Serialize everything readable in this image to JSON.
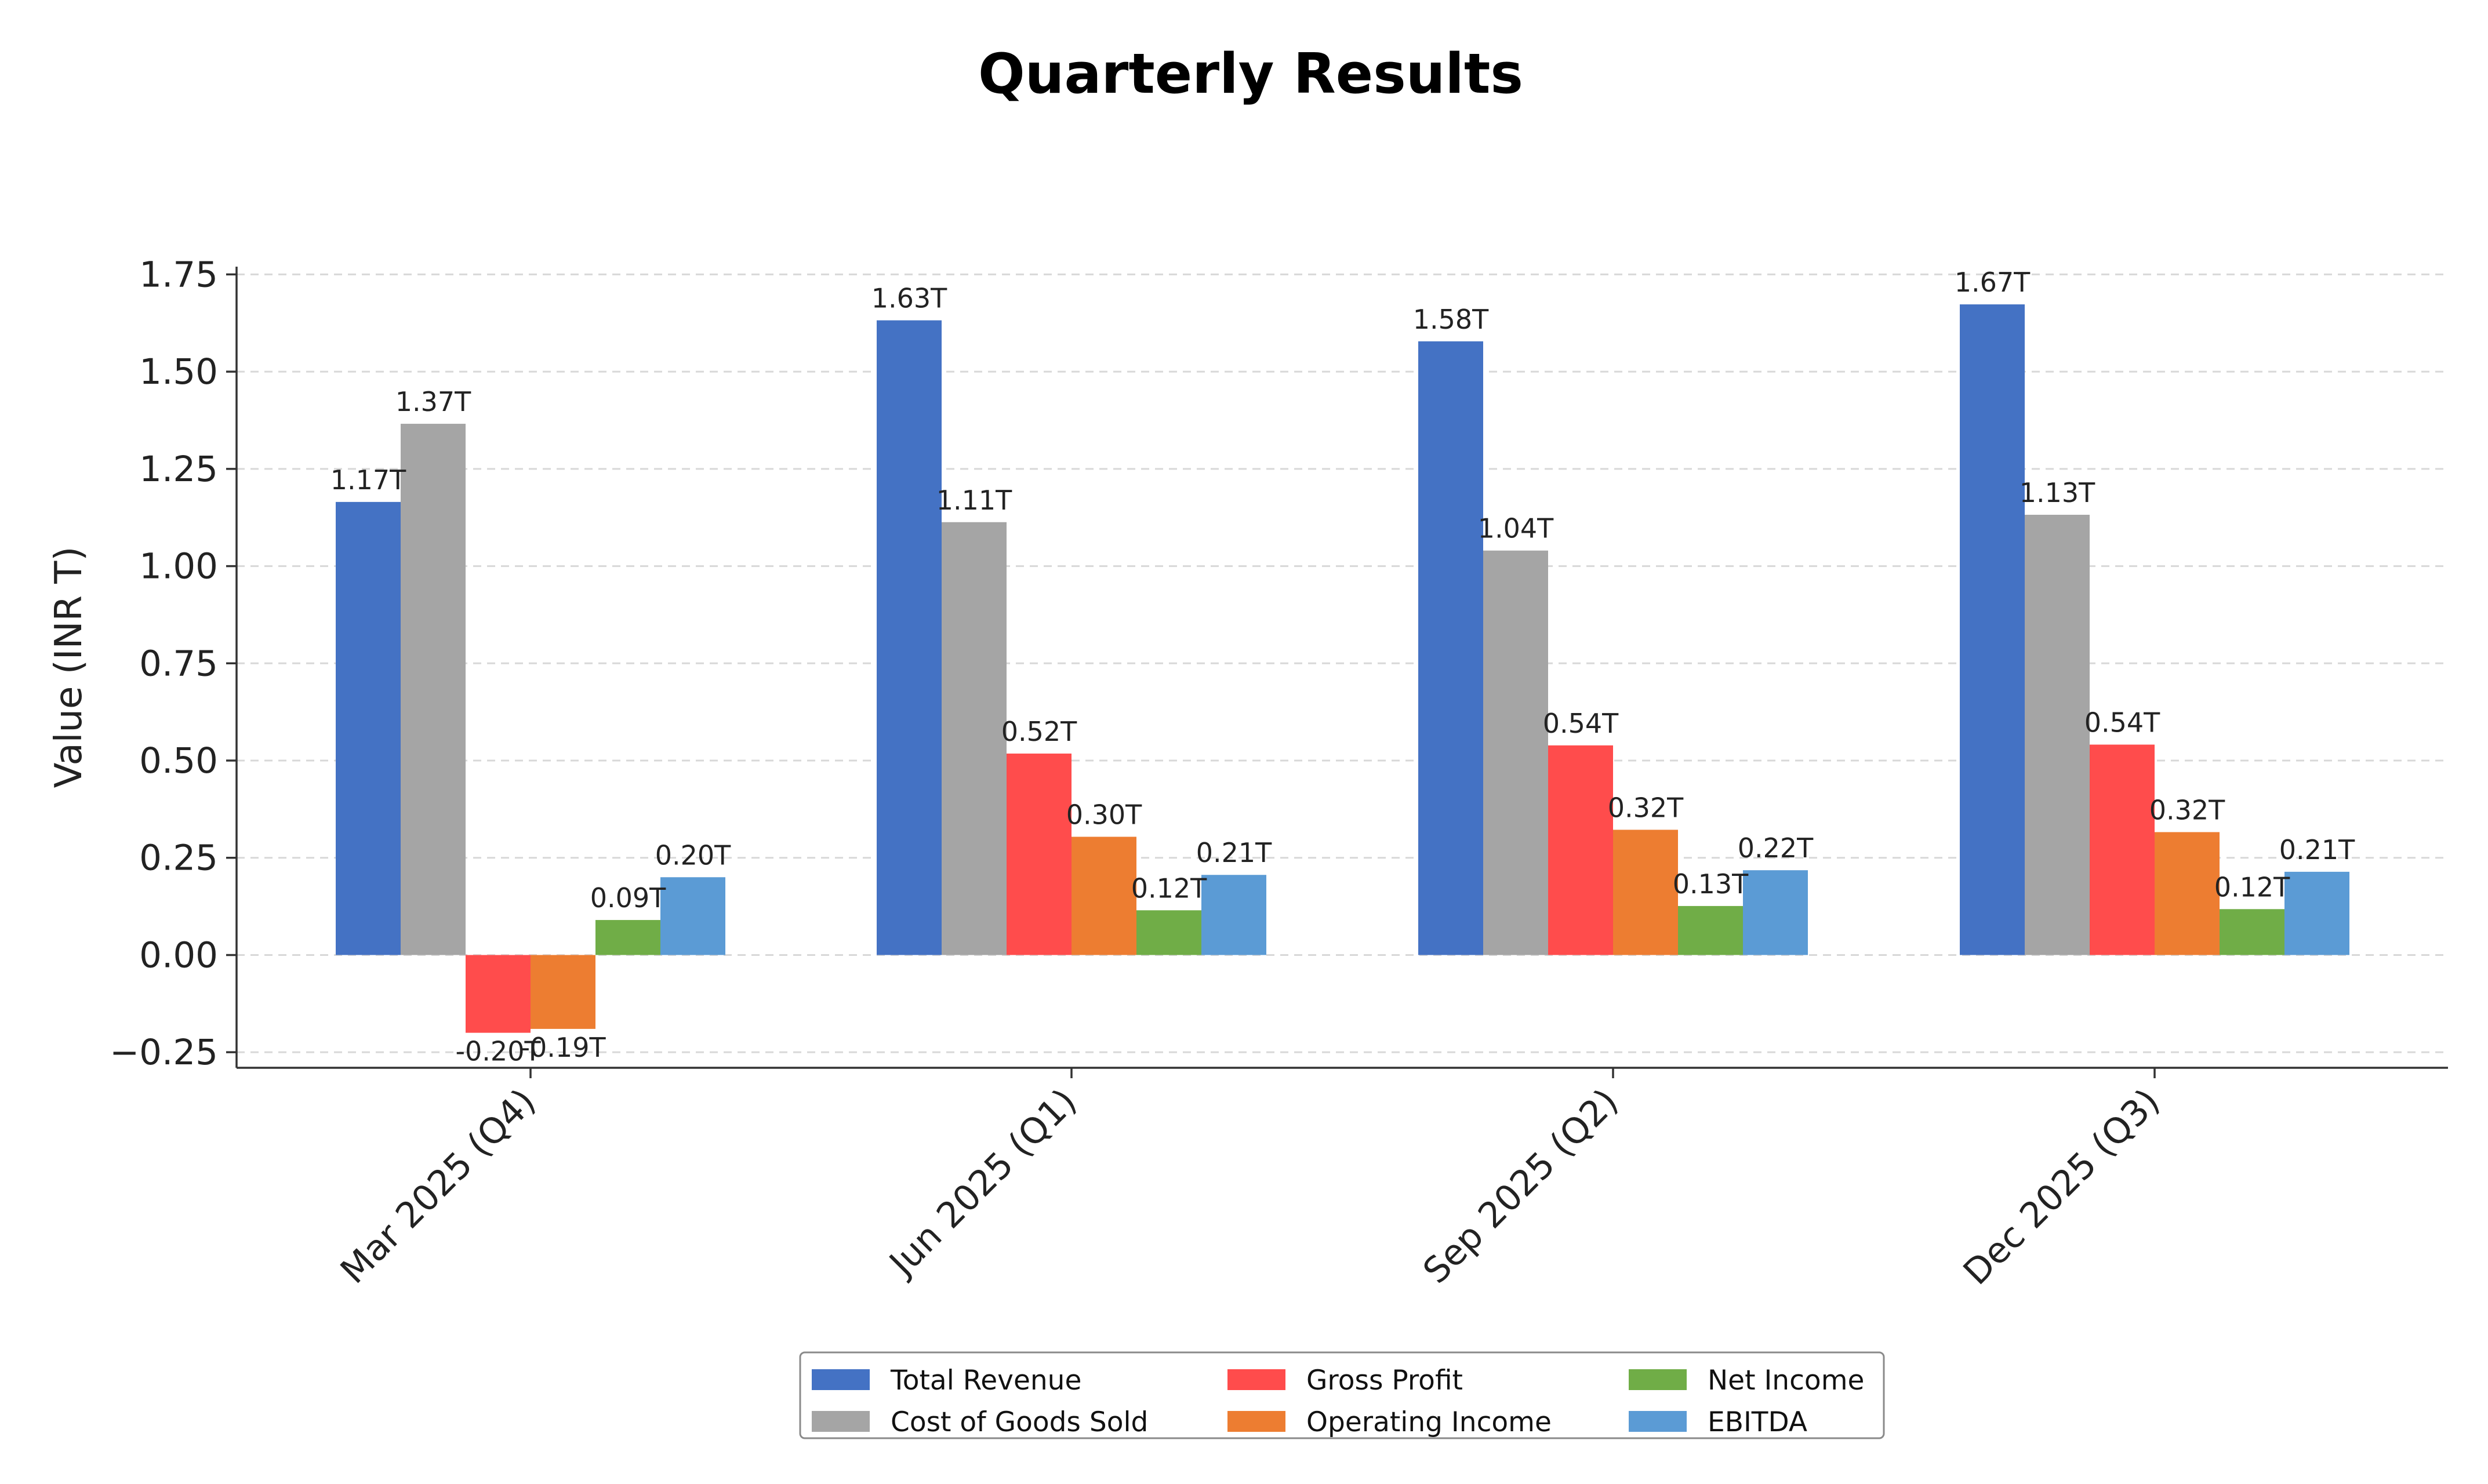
{
  "chart_data": {
    "type": "bar",
    "title": "Quarterly Results",
    "ylabel": "Value (INR T)",
    "xlabel": "",
    "categories": [
      "Mar 2025 (Q4)",
      "Jun 2025 (Q1)",
      "Sep 2025 (Q2)",
      "Dec 2025 (Q3)"
    ],
    "ylim": [
      -0.29,
      1.77
    ],
    "yticks": [
      -0.25,
      0.0,
      0.25,
      0.5,
      0.75,
      1.0,
      1.25,
      1.5,
      1.75
    ],
    "ytick_labels": [
      "−0.25",
      "0.00",
      "0.25",
      "0.50",
      "0.75",
      "1.00",
      "1.25",
      "1.50",
      "1.75"
    ],
    "grid": true,
    "legend_position": "bottom-center",
    "series": [
      {
        "name": "Total Revenue",
        "color": "#4472c4",
        "values": [
          1.165,
          1.632,
          1.578,
          1.673
        ],
        "labels": [
          "1.17T",
          "1.63T",
          "1.58T",
          "1.67T"
        ]
      },
      {
        "name": "Cost of Goods Sold",
        "color": "#a5a5a5",
        "values": [
          1.366,
          1.113,
          1.04,
          1.132
        ],
        "labels": [
          "1.37T",
          "1.11T",
          "1.04T",
          "1.13T"
        ]
      },
      {
        "name": "Gross Profit",
        "color": "#ff4c4c",
        "values": [
          -0.2,
          0.518,
          0.539,
          0.541
        ],
        "labels": [
          "-0.20T",
          "0.52T",
          "0.54T",
          "0.54T"
        ]
      },
      {
        "name": "Operating Income",
        "color": "#ed7d31",
        "values": [
          -0.19,
          0.304,
          0.322,
          0.316
        ],
        "labels": [
          "-0.19T",
          "0.30T",
          "0.32T",
          "0.32T"
        ]
      },
      {
        "name": "Net Income",
        "color": "#70ad47",
        "values": [
          0.09,
          0.115,
          0.126,
          0.118
        ],
        "labels": [
          "0.09T",
          "0.12T",
          "0.13T",
          "0.12T"
        ]
      },
      {
        "name": "EBITDA",
        "color": "#5b9bd5",
        "values": [
          0.2,
          0.206,
          0.218,
          0.214
        ],
        "labels": [
          "0.20T",
          "0.21T",
          "0.22T",
          "0.21T"
        ]
      }
    ]
  }
}
